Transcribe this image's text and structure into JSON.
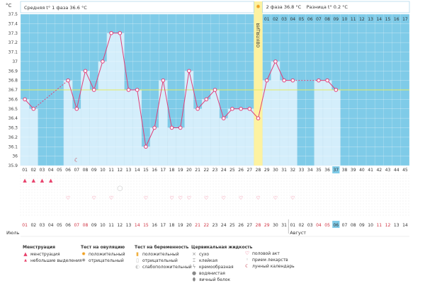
{
  "chart_data": {
    "type": "line",
    "ylabel": "°C",
    "y_ticks": [
      "35.9",
      "36",
      "36.1",
      "36.2",
      "36.3",
      "36.4",
      "36.5",
      "36.6",
      "36.7",
      "36.8",
      "36.9",
      "37",
      "37.1",
      "37.2",
      "37.3",
      "37.4",
      "37.5"
    ],
    "ylim": [
      35.9,
      37.5
    ],
    "cycle_days": [
      "01",
      "02",
      "03",
      "04",
      "05",
      "06",
      "07",
      "08",
      "09",
      "10",
      "11",
      "12",
      "13",
      "14",
      "15",
      "16",
      "17",
      "18",
      "19",
      "20",
      "21",
      "22",
      "23",
      "24",
      "25",
      "26",
      "27",
      "28",
      "29",
      "30",
      "31",
      "32",
      "33",
      "34",
      "35",
      "36",
      "37",
      "38",
      "39",
      "40",
      "41",
      "42",
      "43",
      "44",
      "45"
    ],
    "top_days_phase2": [
      "01",
      "02",
      "03",
      "04",
      "05",
      "06",
      "07",
      "08",
      "09",
      "10",
      "11",
      "12",
      "13",
      "14",
      "15",
      "16",
      "17"
    ],
    "temperatures": [
      36.6,
      36.5,
      null,
      null,
      null,
      36.8,
      36.5,
      36.9,
      36.7,
      37.0,
      37.3,
      37.3,
      36.7,
      36.7,
      36.1,
      36.3,
      36.8,
      36.3,
      36.3,
      36.9,
      36.5,
      36.6,
      36.7,
      36.4,
      36.5,
      36.5,
      36.5,
      36.4,
      36.8,
      37.0,
      36.8,
      36.8,
      null,
      null,
      36.8,
      36.8,
      36.7,
      null,
      null,
      null,
      null,
      null,
      null,
      null,
      null
    ],
    "coverline": 36.7,
    "ovulation_day": 28,
    "ovulation_label": "ОВУЛЯЦИЯ",
    "current_day": 37,
    "phase1_label": "Средняя t° 1 фаза 36.6 °C",
    "phase2_label": "2 фаза 36.8 °C",
    "diff_label": "Разница t° 0.2 °C",
    "calendar_dates": [
      "01",
      "02",
      "03",
      "04",
      "05",
      "06",
      "07",
      "08",
      "09",
      "10",
      "11",
      "12",
      "13",
      "14",
      "15",
      "16",
      "17",
      "18",
      "19",
      "20",
      "21",
      "22",
      "23",
      "24",
      "25",
      "26",
      "27",
      "28",
      "29",
      "30",
      "31",
      "01",
      "02",
      "03",
      "04",
      "05",
      "06",
      "07",
      "08",
      "09",
      "10",
      "11",
      "12",
      "13",
      "14"
    ],
    "month1": "Июль",
    "month2": "Август",
    "menstruation_days": [
      1,
      2,
      3,
      4
    ],
    "intercourse_days": [
      6,
      9,
      11,
      15,
      18,
      19,
      20,
      22,
      24,
      26,
      28,
      30,
      32
    ],
    "moon_day": 7,
    "ovulation_test_day": 12,
    "legend": {
      "menstruation": {
        "title": "Менструация",
        "items": [
          "менструация",
          "небольшие выделения"
        ]
      },
      "ovtest": {
        "title": "Тест на овуляцию",
        "items": [
          "положительный",
          "отрицательный"
        ]
      },
      "pregtest": {
        "title": "Тест на беременность",
        "items": [
          "положительный",
          "отрицательный",
          "слабоположительный"
        ]
      },
      "mucus": {
        "title": "Цервикальная жидкость",
        "items": [
          "сухо",
          "клейкая",
          "кремообразная",
          "водянистая",
          "яичный белок"
        ]
      },
      "other": {
        "items": [
          "половой акт",
          "прием лекарств",
          "лунный календарь"
        ]
      }
    }
  }
}
